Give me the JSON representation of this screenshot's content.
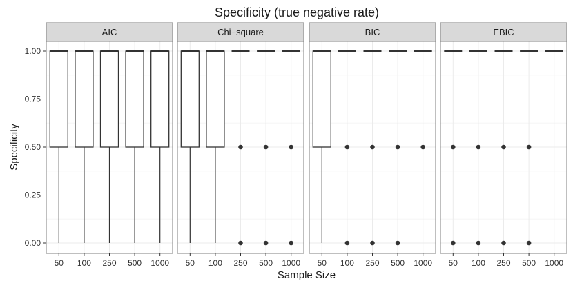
{
  "chart_data": {
    "type": "boxplot",
    "title": "Specificity (true negative rate)",
    "xlabel": "Sample Size",
    "ylabel": "Specificity",
    "ylim": [
      0,
      1
    ],
    "yticks": [
      0.0,
      0.25,
      0.5,
      0.75,
      1.0
    ],
    "ytick_labels": [
      "0.00",
      "0.25",
      "0.50",
      "0.75",
      "1.00"
    ],
    "categories": [
      "50",
      "100",
      "250",
      "500",
      "1000"
    ],
    "facets": [
      {
        "label": "AIC",
        "boxes": [
          {
            "q1": 0.5,
            "median": 1.0,
            "q3": 1.0,
            "whisker_low": 0.0,
            "whisker_high": 1.0,
            "outliers": []
          },
          {
            "q1": 0.5,
            "median": 1.0,
            "q3": 1.0,
            "whisker_low": 0.0,
            "whisker_high": 1.0,
            "outliers": []
          },
          {
            "q1": 0.5,
            "median": 1.0,
            "q3": 1.0,
            "whisker_low": 0.0,
            "whisker_high": 1.0,
            "outliers": []
          },
          {
            "q1": 0.5,
            "median": 1.0,
            "q3": 1.0,
            "whisker_low": 0.0,
            "whisker_high": 1.0,
            "outliers": []
          },
          {
            "q1": 0.5,
            "median": 1.0,
            "q3": 1.0,
            "whisker_low": 0.0,
            "whisker_high": 1.0,
            "outliers": []
          }
        ]
      },
      {
        "label": "Chi−square",
        "boxes": [
          {
            "q1": 0.5,
            "median": 1.0,
            "q3": 1.0,
            "whisker_low": 0.0,
            "whisker_high": 1.0,
            "outliers": []
          },
          {
            "q1": 0.5,
            "median": 1.0,
            "q3": 1.0,
            "whisker_low": 0.0,
            "whisker_high": 1.0,
            "outliers": []
          },
          {
            "q1": 1.0,
            "median": 1.0,
            "q3": 1.0,
            "whisker_low": 1.0,
            "whisker_high": 1.0,
            "outliers": [
              0.5,
              0.0
            ]
          },
          {
            "q1": 1.0,
            "median": 1.0,
            "q3": 1.0,
            "whisker_low": 1.0,
            "whisker_high": 1.0,
            "outliers": [
              0.5,
              0.0
            ]
          },
          {
            "q1": 1.0,
            "median": 1.0,
            "q3": 1.0,
            "whisker_low": 1.0,
            "whisker_high": 1.0,
            "outliers": [
              0.5,
              0.0
            ]
          }
        ]
      },
      {
        "label": "BIC",
        "boxes": [
          {
            "q1": 0.5,
            "median": 1.0,
            "q3": 1.0,
            "whisker_low": 0.0,
            "whisker_high": 1.0,
            "outliers": []
          },
          {
            "q1": 1.0,
            "median": 1.0,
            "q3": 1.0,
            "whisker_low": 1.0,
            "whisker_high": 1.0,
            "outliers": [
              0.5,
              0.0
            ]
          },
          {
            "q1": 1.0,
            "median": 1.0,
            "q3": 1.0,
            "whisker_low": 1.0,
            "whisker_high": 1.0,
            "outliers": [
              0.5,
              0.0
            ]
          },
          {
            "q1": 1.0,
            "median": 1.0,
            "q3": 1.0,
            "whisker_low": 1.0,
            "whisker_high": 1.0,
            "outliers": [
              0.5,
              0.0
            ]
          },
          {
            "q1": 1.0,
            "median": 1.0,
            "q3": 1.0,
            "whisker_low": 1.0,
            "whisker_high": 1.0,
            "outliers": [
              0.5
            ]
          }
        ]
      },
      {
        "label": "EBIC",
        "boxes": [
          {
            "q1": 1.0,
            "median": 1.0,
            "q3": 1.0,
            "whisker_low": 1.0,
            "whisker_high": 1.0,
            "outliers": [
              0.5,
              0.0
            ]
          },
          {
            "q1": 1.0,
            "median": 1.0,
            "q3": 1.0,
            "whisker_low": 1.0,
            "whisker_high": 1.0,
            "outliers": [
              0.5,
              0.0
            ]
          },
          {
            "q1": 1.0,
            "median": 1.0,
            "q3": 1.0,
            "whisker_low": 1.0,
            "whisker_high": 1.0,
            "outliers": [
              0.5,
              0.0
            ]
          },
          {
            "q1": 1.0,
            "median": 1.0,
            "q3": 1.0,
            "whisker_low": 1.0,
            "whisker_high": 1.0,
            "outliers": [
              0.5,
              0.0
            ]
          },
          {
            "q1": 1.0,
            "median": 1.0,
            "q3": 1.0,
            "whisker_low": 1.0,
            "whisker_high": 1.0,
            "outliers": []
          }
        ]
      }
    ]
  },
  "colors": {
    "strip_bg": "#d9d9d9",
    "panel_border": "#7f7f7f",
    "grid_major": "#ebebeb",
    "grid_minor": "#f5f5f5",
    "box_line": "#333333",
    "box_fill": "#ffffff"
  }
}
